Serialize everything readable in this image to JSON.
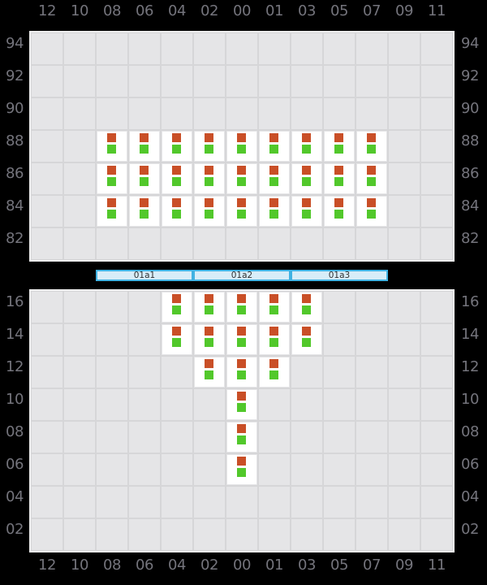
{
  "columns": [
    "12",
    "10",
    "08",
    "06",
    "04",
    "02",
    "00",
    "01",
    "03",
    "05",
    "07",
    "09",
    "11"
  ],
  "deck": {
    "tiers": [
      "94",
      "92",
      "90",
      "88",
      "86",
      "84",
      "82"
    ],
    "occupied": {
      "88": [
        "08",
        "06",
        "04",
        "02",
        "00",
        "01",
        "03",
        "05",
        "07"
      ],
      "86": [
        "08",
        "06",
        "04",
        "02",
        "00",
        "01",
        "03",
        "05",
        "07"
      ],
      "84": [
        "08",
        "06",
        "04",
        "02",
        "00",
        "01",
        "03",
        "05",
        "07"
      ]
    }
  },
  "hold": {
    "tiers": [
      "16",
      "14",
      "12",
      "10",
      "08",
      "06",
      "04",
      "02"
    ],
    "occupied": {
      "16": [
        "04",
        "02",
        "00",
        "01",
        "03"
      ],
      "14": [
        "04",
        "02",
        "00",
        "01",
        "03"
      ],
      "12": [
        "02",
        "00",
        "01"
      ],
      "10": [
        "00"
      ],
      "08": [
        "00"
      ],
      "06": [
        "00"
      ]
    }
  },
  "hatch_covers": [
    {
      "label": "01a1"
    },
    {
      "label": "01a2"
    },
    {
      "label": "01a3"
    }
  ],
  "container_markers": {
    "top_color": "#c94f27",
    "bottom_color": "#52c82b"
  },
  "colors": {
    "background": "#000000",
    "grid_cell": "#e5e5e7",
    "grid_line": "#d6d6d8",
    "panel_border": "#eeeeef",
    "label_text": "#74747c",
    "occupied_cell": "#ffffff",
    "hatch_border": "#41b2e2",
    "hatch_fill": "#d8edf8",
    "hatch_text": "#333333"
  }
}
